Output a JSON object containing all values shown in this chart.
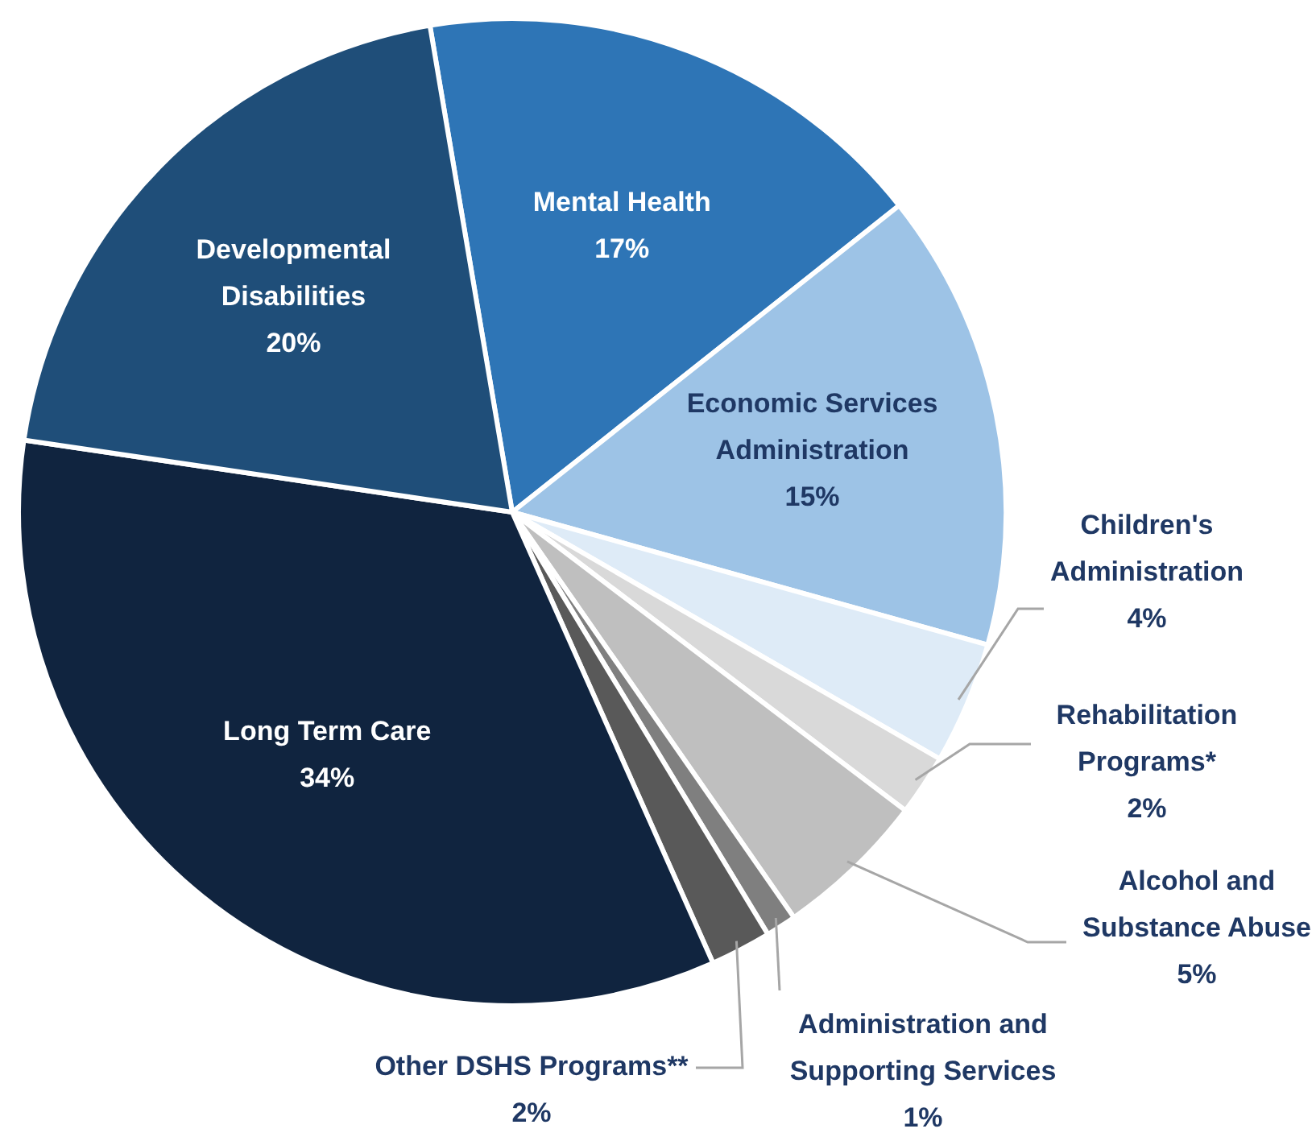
{
  "chart_data": {
    "type": "pie",
    "categories": [
      "Mental Health",
      "Economic Services Administration",
      "Children's Administration",
      "Rehabilitation Programs*",
      "Alcohol and Substance Abuse",
      "Administration and Supporting Services",
      "Other DSHS Programs**",
      "Long Term Care",
      "Developmental Disabilities"
    ],
    "values": [
      17,
      15,
      4,
      2,
      5,
      1,
      2,
      34,
      20
    ],
    "colors": [
      "#2e75b6",
      "#9dc3e6",
      "#deebf7",
      "#d9d9d9",
      "#bfbfbf",
      "#7f7f7f",
      "#595959",
      "#10243f",
      "#1f4e79"
    ],
    "value_labels": [
      "17%",
      "15%",
      "4%",
      "2%",
      "5%",
      "1%",
      "2%",
      "34%",
      "20%"
    ],
    "legend": false
  }
}
